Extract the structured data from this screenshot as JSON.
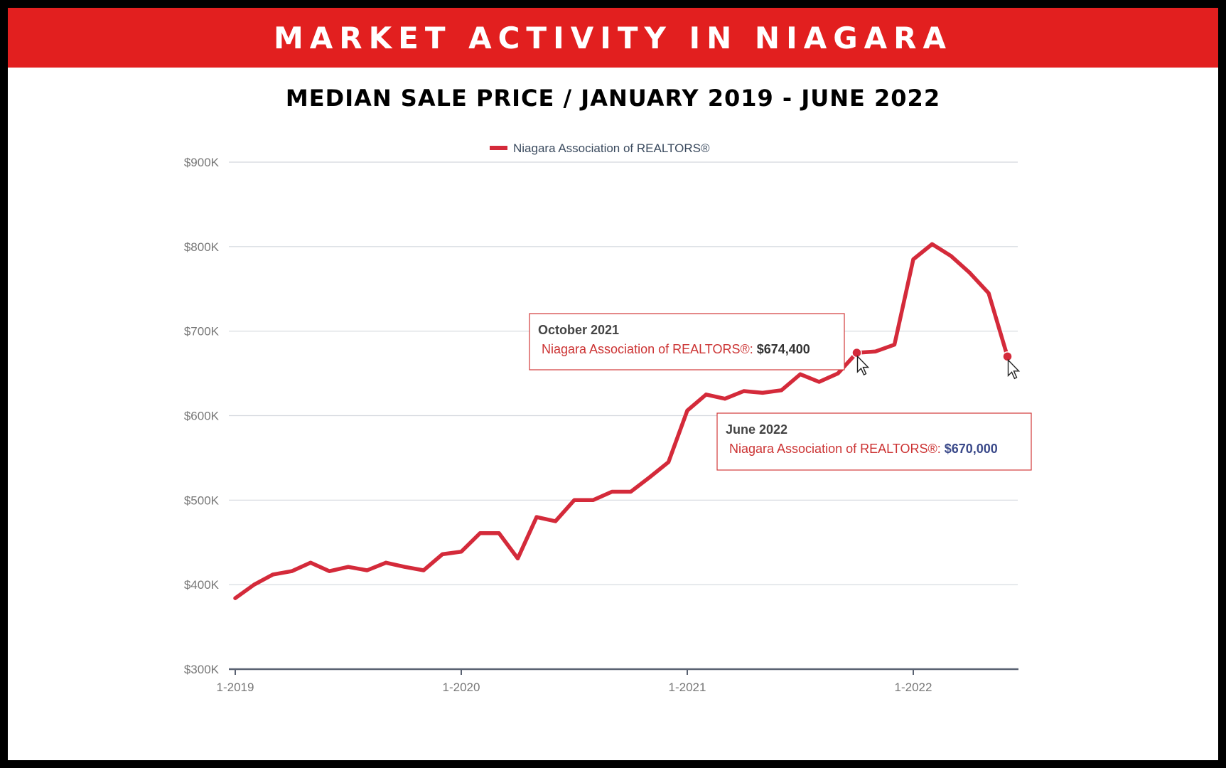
{
  "banner": {
    "title": "MARKET ACTIVITY IN NIAGARA"
  },
  "subtitle": "MEDIAN SALE PRICE / JANUARY 2019 - JUNE 2022",
  "colors": {
    "banner": "#e21f1f",
    "series": "#d42a3a",
    "frame": "#000000"
  },
  "chart_data": {
    "type": "line",
    "legend": {
      "position": "top-center"
    },
    "grid": true,
    "ylim": [
      300000,
      900000
    ],
    "y_ticks": [
      {
        "value": 900000,
        "label": "$900K"
      },
      {
        "value": 800000,
        "label": "$800K"
      },
      {
        "value": 700000,
        "label": "$700K"
      },
      {
        "value": 600000,
        "label": "$600K"
      },
      {
        "value": 500000,
        "label": "$500K"
      },
      {
        "value": 400000,
        "label": "$400K"
      },
      {
        "value": 300000,
        "label": "$300K"
      }
    ],
    "x_ticks": [
      {
        "value": "2019-01",
        "label": "1-2019"
      },
      {
        "value": "2020-01",
        "label": "1-2020"
      },
      {
        "value": "2021-01",
        "label": "1-2021"
      },
      {
        "value": "2022-01",
        "label": "1-2022"
      }
    ],
    "x": [
      "2019-01",
      "2019-02",
      "2019-03",
      "2019-04",
      "2019-05",
      "2019-06",
      "2019-07",
      "2019-08",
      "2019-09",
      "2019-10",
      "2019-11",
      "2019-12",
      "2020-01",
      "2020-02",
      "2020-03",
      "2020-04",
      "2020-05",
      "2020-06",
      "2020-07",
      "2020-08",
      "2020-09",
      "2020-10",
      "2020-11",
      "2020-12",
      "2021-01",
      "2021-02",
      "2021-03",
      "2021-04",
      "2021-05",
      "2021-06",
      "2021-07",
      "2021-08",
      "2021-09",
      "2021-10",
      "2021-11",
      "2021-12",
      "2022-01",
      "2022-02",
      "2022-03",
      "2022-04",
      "2022-05",
      "2022-06"
    ],
    "series": [
      {
        "name": "Niagara Association of REALTORS®",
        "values": [
          384000,
          400000,
          412000,
          416000,
          426000,
          416000,
          421000,
          417000,
          426000,
          421000,
          417000,
          436000,
          439000,
          461000,
          461000,
          431000,
          480000,
          475000,
          500000,
          500000,
          510000,
          510000,
          527000,
          545000,
          606000,
          625000,
          620000,
          629000,
          627000,
          630000,
          649000,
          640000,
          650000,
          674400,
          676000,
          684000,
          785000,
          803000,
          789000,
          769000,
          745000,
          670000
        ]
      }
    ],
    "tooltips": [
      {
        "date": "October 2021",
        "series": "Niagara Association of REALTORS®:",
        "value": "$674,400",
        "x": "2021-10",
        "y": 674400
      },
      {
        "date": "June 2022",
        "series": "Niagara Association of REALTORS®:",
        "value": "$670,000",
        "x": "2022-06",
        "y": 670000
      }
    ]
  }
}
